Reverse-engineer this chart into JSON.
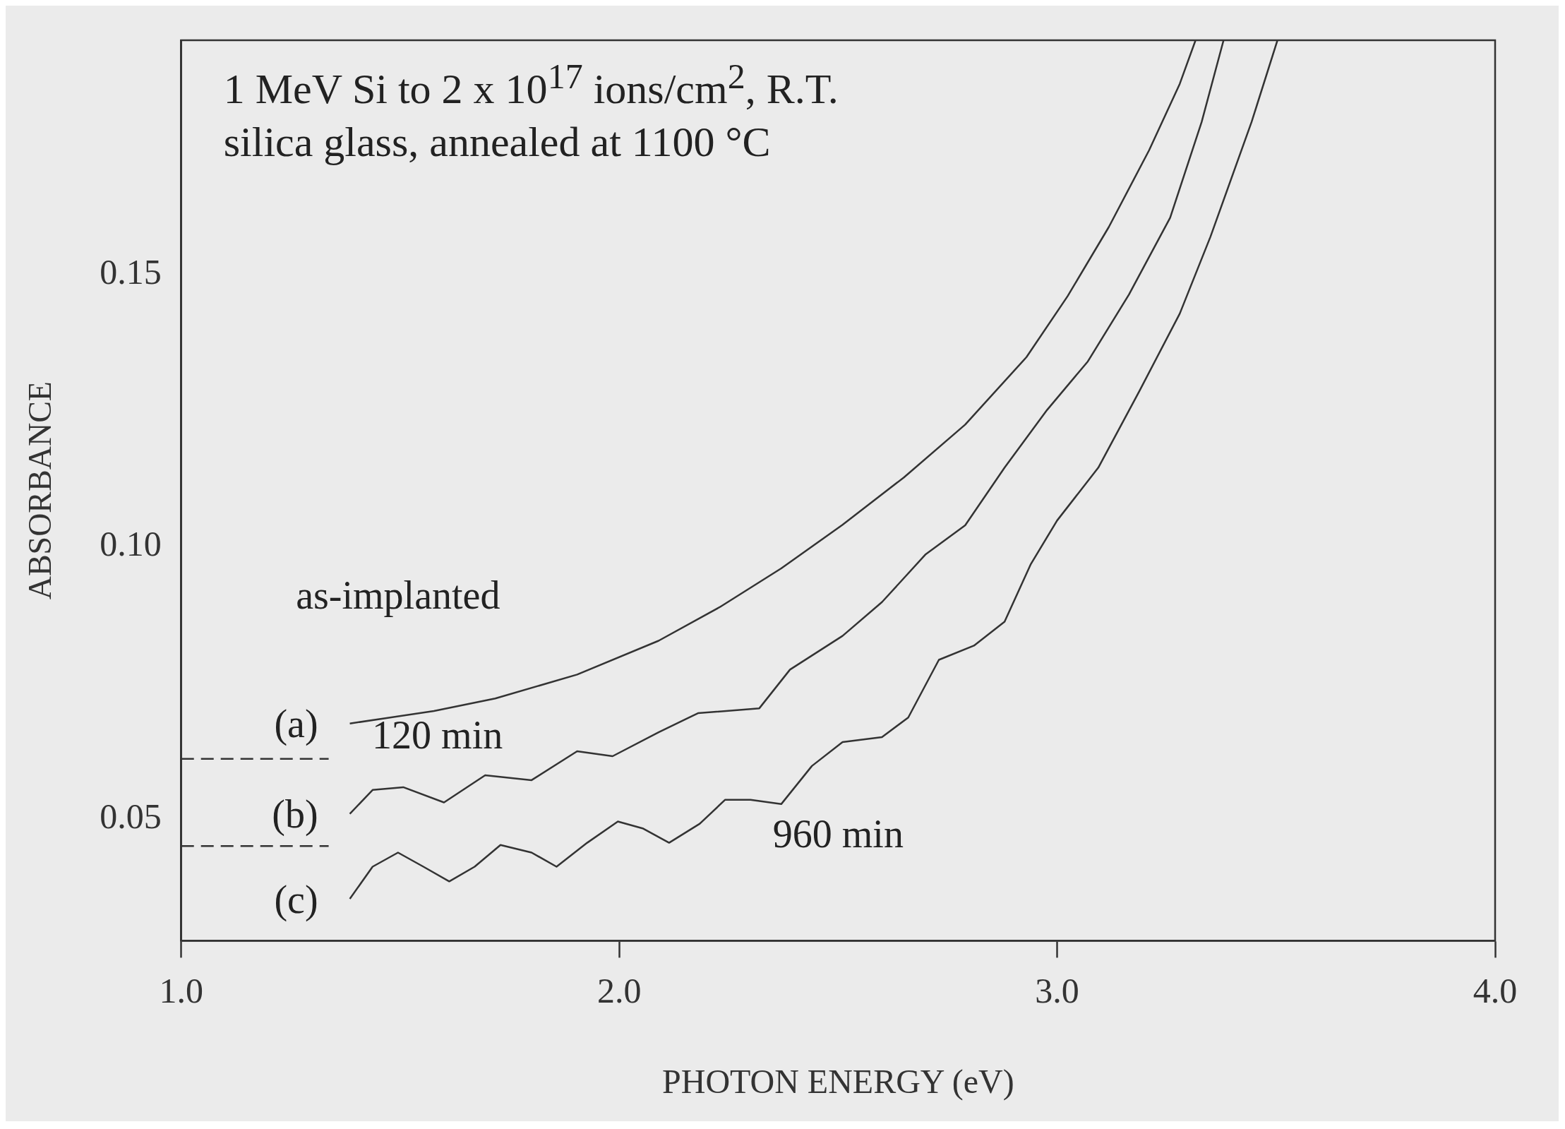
{
  "chart_data": {
    "type": "line",
    "title": "1 MeV Si to 2 x 10$^{17}$ ions/cm$^{2}$, R.T.",
    "subtitle": "silica glass, annealed at 1100 °C",
    "xlabel": "PHOTON ENERGY (eV)",
    "ylabel": "ABSORBANCE",
    "xlim": [
      1.0,
      4.0
    ],
    "xticks": [
      {
        "value": 1.0,
        "label": "1.0"
      },
      {
        "value": 2.0,
        "label": "2.0"
      },
      {
        "value": 3.0,
        "label": "3.0"
      },
      {
        "value": 4.0,
        "label": "4.0"
      }
    ],
    "ylim": [
      0.0276,
      0.193
    ],
    "yticks": [
      0.05,
      {
        "value": 0.1,
        "label": "0.10"
      },
      0.15
    ],
    "grid": false,
    "legend": false,
    "marker": "none",
    "line_style": "solid",
    "ref_lines": [
      {
        "axis": "y",
        "value": 0.061,
        "line_style": "dashed",
        "color": "#333333"
      },
      {
        "axis": "y",
        "value": 0.045,
        "line_style": "dashed",
        "color": "#333333"
      }
    ],
    "annotations": [
      "as-implanted",
      "120 min",
      "960 min"
    ],
    "series": [
      {
        "name": "(a)",
        "color": "#333333",
        "x": [
          1.385,
          1.577,
          1.717,
          1.904,
          2.09,
          2.23,
          2.37,
          2.51,
          2.65,
          2.79,
          2.93,
          3.024,
          3.118,
          3.21,
          3.28,
          3.316
        ],
        "values": [
          0.0675,
          0.0698,
          0.0721,
          0.0765,
          0.0827,
          0.0889,
          0.096,
          0.104,
          0.1127,
          0.1224,
          0.1348,
          0.146,
          0.1587,
          0.1728,
          0.185,
          0.193
        ]
      },
      {
        "name": "(b)",
        "color": "#333333",
        "x": [
          1.385,
          1.437,
          1.507,
          1.6,
          1.694,
          1.8,
          1.904,
          1.985,
          2.09,
          2.18,
          2.32,
          2.39,
          2.51,
          2.6,
          2.7,
          2.79,
          2.88,
          2.977,
          3.07,
          3.164,
          3.258,
          3.33,
          3.38
        ],
        "values": [
          0.0509,
          0.0553,
          0.0558,
          0.053,
          0.058,
          0.0571,
          0.0624,
          0.0615,
          0.0659,
          0.0694,
          0.0703,
          0.0774,
          0.0836,
          0.0898,
          0.0986,
          0.1039,
          0.1145,
          0.1251,
          0.134,
          0.1463,
          0.1604,
          0.178,
          0.193
        ]
      },
      {
        "name": "(c)",
        "color": "#333333",
        "x": [
          1.385,
          1.437,
          1.495,
          1.553,
          1.612,
          1.67,
          1.729,
          1.8,
          1.857,
          1.927,
          1.997,
          2.055,
          2.114,
          2.184,
          2.242,
          2.3,
          2.37,
          2.44,
          2.51,
          2.6,
          2.66,
          2.73,
          2.81,
          2.88,
          2.94,
          3.0,
          3.094,
          3.188,
          3.28,
          3.35,
          3.444,
          3.503
        ],
        "values": [
          0.0353,
          0.0412,
          0.0438,
          0.0412,
          0.0385,
          0.0412,
          0.0452,
          0.0438,
          0.0412,
          0.0456,
          0.0495,
          0.0482,
          0.0456,
          0.0491,
          0.0535,
          0.0535,
          0.0527,
          0.0597,
          0.0641,
          0.065,
          0.0686,
          0.0792,
          0.0818,
          0.0862,
          0.0968,
          0.1048,
          0.1145,
          0.1286,
          0.1428,
          0.1569,
          0.178,
          0.193
        ]
      }
    ]
  }
}
